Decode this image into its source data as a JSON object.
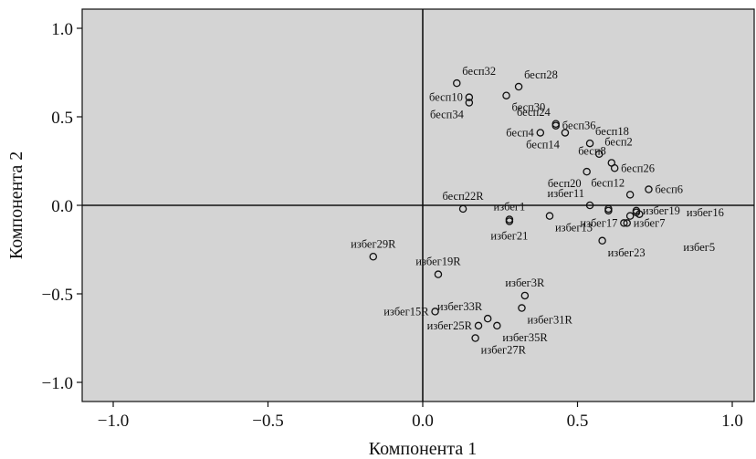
{
  "chart_data": {
    "type": "scatter",
    "title": "",
    "xlabel": "Компонента 1",
    "ylabel": "Компонента 2",
    "xlim": [
      -1.1,
      1.1
    ],
    "ylim": [
      -1.1,
      1.12
    ],
    "xticks": [
      -1.0,
      -0.5,
      0.0,
      0.5,
      1.0
    ],
    "yticks": [
      -1.0,
      -0.5,
      0.0,
      0.5,
      1.0
    ],
    "xtick_labels": [
      "−1.0",
      "−0.5",
      "0.0",
      "0.5",
      "1.0"
    ],
    "ytick_labels": [
      "−1.0",
      "−0.5",
      "0.0",
      "0.5",
      "1.0"
    ],
    "reference_lines": {
      "x": 0,
      "y": 0
    },
    "plot_background": "#d4d4d4",
    "grid": false,
    "points": [
      {
        "label": "бесп32",
        "x": 0.11,
        "y": 0.69,
        "pos": "tr"
      },
      {
        "label": "бесп28",
        "x": 0.31,
        "y": 0.67,
        "pos": "tr"
      },
      {
        "label": "бесп10",
        "x": 0.15,
        "y": 0.61,
        "pos": "l"
      },
      {
        "label": "бесп30",
        "x": 0.27,
        "y": 0.62,
        "pos": "br"
      },
      {
        "label": "бесп34",
        "x": 0.15,
        "y": 0.58,
        "pos": "bl"
      },
      {
        "label": "бесп24",
        "x": 0.43,
        "y": 0.46,
        "pos": "tl"
      },
      {
        "label": "бесп36",
        "x": 0.43,
        "y": 0.45,
        "pos": "r"
      },
      {
        "label": "бесп4",
        "x": 0.38,
        "y": 0.41,
        "pos": "l"
      },
      {
        "label": "бесп14",
        "x": 0.46,
        "y": 0.41,
        "pos": "bl"
      },
      {
        "label": "бесп18",
        "x": 0.54,
        "y": 0.35,
        "pos": "tr"
      },
      {
        "label": "бесп2",
        "x": 0.57,
        "y": 0.29,
        "pos": "tr"
      },
      {
        "label": "бесп8",
        "x": 0.61,
        "y": 0.24,
        "pos": "tl"
      },
      {
        "label": "бесп26",
        "x": 0.62,
        "y": 0.21,
        "pos": "r"
      },
      {
        "label": "бесп20",
        "x": 0.53,
        "y": 0.19,
        "pos": "bl"
      },
      {
        "label": "бесп6",
        "x": 0.73,
        "y": 0.09,
        "pos": "r"
      },
      {
        "label": "бесп12",
        "x": 0.67,
        "y": 0.06,
        "pos": "tl"
      },
      {
        "label": "избег11",
        "x": 0.54,
        "y": 0.0,
        "pos": "tl"
      },
      {
        "label": "бесп22R",
        "x": 0.13,
        "y": -0.02,
        "pos": "t"
      },
      {
        "label": "избег1",
        "x": 0.28,
        "y": -0.08,
        "pos": "t"
      },
      {
        "label": "избег13",
        "x": 0.41,
        "y": -0.06,
        "pos": "br"
      },
      {
        "label": "избег21",
        "x": 0.28,
        "y": -0.09,
        "pos": "b"
      },
      {
        "label": "избег19",
        "x": 0.69,
        "y": -0.03,
        "pos": "r"
      },
      {
        "label": "избег16",
        "x": 0.69,
        "y": -0.04,
        "pos": "far"
      },
      {
        "label": "избег7",
        "x": 0.66,
        "y": -0.1,
        "pos": "r"
      },
      {
        "label": "избег17",
        "x": 0.65,
        "y": -0.1,
        "pos": "l"
      },
      {
        "label": "избег5",
        "x": 0.6,
        "y": -0.03,
        "pos": "farbr"
      },
      {
        "label": "избег23",
        "x": 0.58,
        "y": -0.2,
        "pos": "br"
      },
      {
        "label": "избег29R",
        "x": -0.16,
        "y": -0.29,
        "pos": "t"
      },
      {
        "label": "избег19R",
        "x": 0.05,
        "y": -0.39,
        "pos": "t"
      },
      {
        "label": "избег3R",
        "x": 0.33,
        "y": -0.51,
        "pos": "t"
      },
      {
        "label": "избег15R",
        "x": 0.04,
        "y": -0.6,
        "pos": "l"
      },
      {
        "label": "избег33R",
        "x": 0.21,
        "y": -0.64,
        "pos": "tl"
      },
      {
        "label": "избег31R",
        "x": 0.32,
        "y": -0.58,
        "pos": "br"
      },
      {
        "label": "избег25R",
        "x": 0.18,
        "y": -0.68,
        "pos": "l"
      },
      {
        "label": "избег35R",
        "x": 0.24,
        "y": -0.68,
        "pos": "br"
      },
      {
        "label": "избег27R",
        "x": 0.17,
        "y": -0.75,
        "pos": "br"
      },
      {
        "label": "",
        "x": 0.67,
        "y": -0.06,
        "pos": "none"
      },
      {
        "label": "",
        "x": 0.7,
        "y": -0.05,
        "pos": "none"
      },
      {
        "label": "",
        "x": 0.6,
        "y": -0.02,
        "pos": "none"
      }
    ]
  }
}
